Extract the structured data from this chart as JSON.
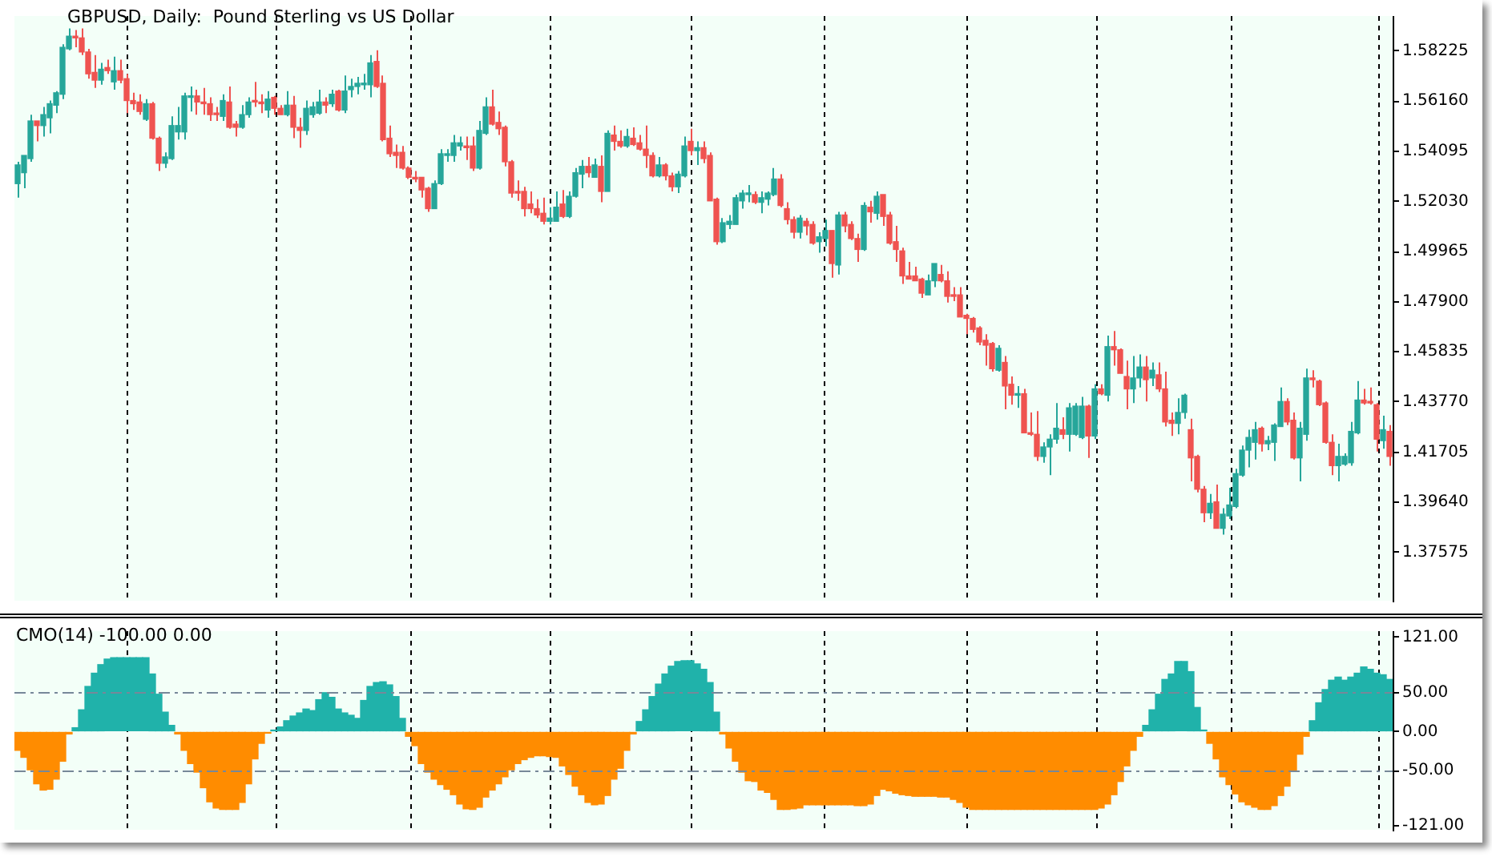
{
  "chart_data": [
    {
      "type": "candlestick",
      "title": "GBPUSD, Daily:  Pound Sterling vs US Dollar",
      "categories": [
        null,
        null,
        null,
        null,
        null,
        null,
        null,
        null,
        null,
        null,
        null,
        null,
        null,
        null,
        null,
        null,
        null,
        null,
        null,
        null,
        null,
        null,
        null,
        null,
        null,
        null,
        null,
        null,
        null,
        null,
        null,
        null,
        null,
        null,
        null,
        null,
        null,
        null,
        null,
        null,
        null,
        null,
        null,
        null,
        null,
        null,
        null,
        null,
        null,
        null,
        null,
        null,
        null,
        null,
        null,
        null,
        null,
        null,
        null,
        null,
        null,
        null,
        null,
        null,
        null,
        null,
        null,
        null,
        null,
        null,
        null,
        null,
        null,
        null,
        null,
        null,
        null,
        null,
        null,
        null,
        null,
        null,
        null,
        null,
        null,
        null,
        null,
        null,
        null,
        null,
        null,
        null,
        null,
        null,
        null,
        null,
        null,
        null,
        null,
        null,
        null,
        null,
        null,
        null,
        null,
        null,
        null,
        null,
        null,
        null,
        null,
        null,
        null,
        null,
        null,
        null,
        null,
        null,
        null,
        null,
        null,
        null,
        null,
        null,
        null,
        null,
        null,
        null,
        null,
        null,
        null,
        null,
        null,
        null,
        null,
        null,
        null,
        null,
        null,
        null,
        null,
        null,
        null,
        null,
        null,
        null,
        null,
        null,
        null,
        null,
        null,
        null,
        null,
        null,
        null,
        null,
        null,
        null,
        null,
        null,
        null,
        null,
        null,
        null,
        null,
        null,
        null,
        null,
        null,
        null,
        null,
        null,
        null,
        null,
        null,
        null,
        null,
        null,
        null,
        null,
        null,
        null,
        null,
        null,
        null,
        null,
        null,
        null,
        null,
        null,
        null,
        null,
        null,
        null,
        null,
        null,
        null,
        null,
        null,
        null,
        null,
        null,
        null,
        null,
        null,
        null,
        null,
        null,
        null,
        null,
        null,
        null,
        null,
        null,
        null
      ],
      "ohlc": [
        [
          1.5276,
          1.5366,
          1.5218,
          1.5353
        ],
        [
          1.5321,
          1.5392,
          1.5257,
          1.5392
        ],
        [
          1.5379,
          1.556,
          1.5366,
          1.5534
        ],
        [
          1.5534,
          1.5534,
          1.545,
          1.5515
        ],
        [
          1.5515,
          1.5592,
          1.547,
          1.556
        ],
        [
          1.5547,
          1.5618,
          1.5483,
          1.5605
        ],
        [
          1.5599,
          1.5657,
          1.5566,
          1.565
        ],
        [
          1.5644,
          1.585,
          1.5624,
          1.5837
        ],
        [
          1.5831,
          1.5915,
          1.5825,
          1.5883
        ],
        [
          1.5883,
          1.5908,
          1.5837,
          1.5876
        ],
        [
          1.5876,
          1.5915,
          1.5805,
          1.5818
        ],
        [
          1.5818,
          1.5831,
          1.5708,
          1.5728
        ],
        [
          1.5734,
          1.5805,
          1.567,
          1.5702
        ],
        [
          1.5702,
          1.5773,
          1.5683,
          1.5747
        ],
        [
          1.5754,
          1.5786,
          1.5728,
          1.5741
        ],
        [
          1.5695,
          1.5799,
          1.5663,
          1.5741
        ],
        [
          1.5741,
          1.5786,
          1.5689,
          1.5702
        ],
        [
          1.5708,
          1.5728,
          1.5566,
          1.5618
        ],
        [
          1.5618,
          1.565,
          1.5579,
          1.5605
        ],
        [
          1.5612,
          1.5644,
          1.556,
          1.5573
        ],
        [
          1.5541,
          1.5624,
          1.5534,
          1.5605
        ],
        [
          1.5605,
          1.5612,
          1.5457,
          1.5463
        ],
        [
          1.5463,
          1.547,
          1.5328,
          1.536
        ],
        [
          1.536,
          1.5405,
          1.534,
          1.5386
        ],
        [
          1.5379,
          1.5553,
          1.5373,
          1.5515
        ],
        [
          1.5489,
          1.5592,
          1.5457,
          1.5515
        ],
        [
          1.5489,
          1.565,
          1.5457,
          1.5637
        ],
        [
          1.5631,
          1.5676,
          1.5573,
          1.5637
        ],
        [
          1.5637,
          1.5663,
          1.556,
          1.5612
        ],
        [
          1.5612,
          1.567,
          1.556,
          1.5605
        ],
        [
          1.5605,
          1.5631,
          1.5534,
          1.556
        ],
        [
          1.5566,
          1.5592,
          1.5534,
          1.556
        ],
        [
          1.5553,
          1.5644,
          1.5534,
          1.5618
        ],
        [
          1.5612,
          1.5676,
          1.5502,
          1.5508
        ],
        [
          1.5521,
          1.5534,
          1.547,
          1.5508
        ],
        [
          1.5508,
          1.5599,
          1.5502,
          1.556
        ],
        [
          1.556,
          1.5631,
          1.5547,
          1.5612
        ],
        [
          1.5618,
          1.5695,
          1.5592,
          1.5612
        ],
        [
          1.5612,
          1.5644,
          1.5566,
          1.5605
        ],
        [
          1.5579,
          1.5657,
          1.5547,
          1.5624
        ],
        [
          1.5631,
          1.5637,
          1.556,
          1.5586
        ],
        [
          1.5586,
          1.5599,
          1.556,
          1.556
        ],
        [
          1.556,
          1.5657,
          1.5553,
          1.5599
        ],
        [
          1.5599,
          1.5637,
          1.5463,
          1.5508
        ],
        [
          1.5508,
          1.5547,
          1.5424,
          1.5495
        ],
        [
          1.5495,
          1.5618,
          1.5476,
          1.5586
        ],
        [
          1.556,
          1.5612,
          1.5547,
          1.5592
        ],
        [
          1.5566,
          1.5663,
          1.556,
          1.5612
        ],
        [
          1.5612,
          1.5631,
          1.5566,
          1.5599
        ],
        [
          1.5605,
          1.5663,
          1.5592,
          1.5644
        ],
        [
          1.5657,
          1.5663,
          1.5573,
          1.5579
        ],
        [
          1.5579,
          1.5721,
          1.5566,
          1.5657
        ],
        [
          1.5663,
          1.5708,
          1.5631,
          1.5676
        ],
        [
          1.5676,
          1.5715,
          1.5644,
          1.5689
        ],
        [
          1.5683,
          1.5728,
          1.5663,
          1.5689
        ],
        [
          1.5683,
          1.5805,
          1.5631,
          1.5773
        ],
        [
          1.5779,
          1.5825,
          1.567,
          1.5676
        ],
        [
          1.5689,
          1.5721,
          1.545,
          1.5457
        ],
        [
          1.5463,
          1.5515,
          1.5386,
          1.5399
        ],
        [
          1.5405,
          1.5437,
          1.534,
          1.5392
        ],
        [
          1.5405,
          1.5431,
          1.5334,
          1.534
        ],
        [
          1.534,
          1.5347,
          1.5295,
          1.5302
        ],
        [
          1.5302,
          1.5328,
          1.5282,
          1.5295
        ],
        [
          1.5302,
          1.5302,
          1.5218,
          1.525
        ],
        [
          1.5257,
          1.5263,
          1.516,
          1.5173
        ],
        [
          1.5173,
          1.5289,
          1.5173,
          1.5276
        ],
        [
          1.5276,
          1.5418,
          1.527,
          1.5399
        ],
        [
          1.5392,
          1.5418,
          1.5366,
          1.5399
        ],
        [
          1.5392,
          1.5476,
          1.5366,
          1.5444
        ],
        [
          1.5431,
          1.547,
          1.5412,
          1.5444
        ],
        [
          1.5431,
          1.547,
          1.5373,
          1.5424
        ],
        [
          1.5431,
          1.547,
          1.5328,
          1.534
        ],
        [
          1.534,
          1.5534,
          1.5334,
          1.5495
        ],
        [
          1.5483,
          1.5631,
          1.5476,
          1.5592
        ],
        [
          1.5592,
          1.5663,
          1.5515,
          1.5521
        ],
        [
          1.5528,
          1.5573,
          1.5476,
          1.5502
        ],
        [
          1.5508,
          1.5515,
          1.5347,
          1.5366
        ],
        [
          1.5366,
          1.5373,
          1.5218,
          1.5237
        ],
        [
          1.5244,
          1.5289,
          1.5205,
          1.5237
        ],
        [
          1.5244,
          1.5263,
          1.5141,
          1.5173
        ],
        [
          1.5192,
          1.5244,
          1.5154,
          1.5173
        ],
        [
          1.5173,
          1.5212,
          1.5134,
          1.5147
        ],
        [
          1.5154,
          1.5218,
          1.5108,
          1.5121
        ],
        [
          1.5121,
          1.5179,
          1.5108,
          1.5134
        ],
        [
          1.5121,
          1.5244,
          1.5121,
          1.5179
        ],
        [
          1.5192,
          1.525,
          1.5134,
          1.5141
        ],
        [
          1.5141,
          1.5244,
          1.5134,
          1.5224
        ],
        [
          1.5224,
          1.534,
          1.5218,
          1.5321
        ],
        [
          1.5315,
          1.5373,
          1.5257,
          1.5347
        ],
        [
          1.5347,
          1.5386,
          1.5302,
          1.5321
        ],
        [
          1.5302,
          1.5379,
          1.5302,
          1.5353
        ],
        [
          1.5347,
          1.5392,
          1.5199,
          1.5244
        ],
        [
          1.5244,
          1.5495,
          1.5244,
          1.5483
        ],
        [
          1.5476,
          1.5515,
          1.5412,
          1.545
        ],
        [
          1.545,
          1.5495,
          1.5424,
          1.5431
        ],
        [
          1.5431,
          1.5502,
          1.5424,
          1.547
        ],
        [
          1.5463,
          1.5508,
          1.5431,
          1.5437
        ],
        [
          1.5444,
          1.5476,
          1.5412,
          1.5418
        ],
        [
          1.5418,
          1.5515,
          1.534,
          1.5392
        ],
        [
          1.5392,
          1.5405,
          1.5302,
          1.5308
        ],
        [
          1.5308,
          1.5386,
          1.5302,
          1.5353
        ],
        [
          1.5353,
          1.536,
          1.5289,
          1.5308
        ],
        [
          1.5308,
          1.5321,
          1.5244,
          1.5263
        ],
        [
          1.5263,
          1.5328,
          1.5237,
          1.5315
        ],
        [
          1.5308,
          1.547,
          1.5302,
          1.5431
        ],
        [
          1.545,
          1.5502,
          1.5392,
          1.5412
        ],
        [
          1.5412,
          1.545,
          1.5353,
          1.5424
        ],
        [
          1.5424,
          1.545,
          1.536,
          1.5379
        ],
        [
          1.5392,
          1.5405,
          1.5205,
          1.5205
        ],
        [
          1.5212,
          1.5218,
          1.5025,
          1.5037
        ],
        [
          1.5037,
          1.5134,
          1.5031,
          1.5115
        ],
        [
          1.5108,
          1.5147,
          1.5089,
          1.5121
        ],
        [
          1.5108,
          1.5231,
          1.5108,
          1.5218
        ],
        [
          1.5205,
          1.525,
          1.5173,
          1.5237
        ],
        [
          1.5231,
          1.527,
          1.5199,
          1.5237
        ],
        [
          1.5231,
          1.5244,
          1.5192,
          1.5199
        ],
        [
          1.5199,
          1.5244,
          1.5154,
          1.5218
        ],
        [
          1.5212,
          1.5244,
          1.5186,
          1.5237
        ],
        [
          1.5231,
          1.534,
          1.5224,
          1.5295
        ],
        [
          1.5295,
          1.5315,
          1.5179,
          1.5186
        ],
        [
          1.5173,
          1.5199,
          1.5108,
          1.5128
        ],
        [
          1.5128,
          1.5141,
          1.505,
          1.5076
        ],
        [
          1.5076,
          1.5147,
          1.505,
          1.5134
        ],
        [
          1.5121,
          1.5134,
          1.5063,
          1.5102
        ],
        [
          1.5108,
          1.5121,
          1.5025,
          1.5031
        ],
        [
          1.5037,
          1.5076,
          1.4992,
          1.5057
        ],
        [
          1.505,
          1.5128,
          1.5018,
          1.5083
        ],
        [
          1.5083,
          1.5083,
          1.4889,
          1.4947
        ],
        [
          1.4941,
          1.516,
          1.4902,
          1.5147
        ],
        [
          1.5147,
          1.516,
          1.5076,
          1.5102
        ],
        [
          1.5108,
          1.5121,
          1.5044,
          1.505
        ],
        [
          1.505,
          1.507,
          1.4954,
          1.5005
        ],
        [
          1.5005,
          1.5199,
          1.4999,
          1.5186
        ],
        [
          1.5179,
          1.5205,
          1.5115,
          1.516
        ],
        [
          1.5154,
          1.5244,
          1.5128,
          1.5224
        ],
        [
          1.5231,
          1.5231,
          1.5102,
          1.5141
        ],
        [
          1.5147,
          1.516,
          1.5025,
          1.5031
        ],
        [
          1.5037,
          1.5102,
          1.4954,
          1.5005
        ],
        [
          1.4999,
          1.5012,
          1.4863,
          1.4896
        ],
        [
          1.4896,
          1.4954,
          1.4883,
          1.4883
        ],
        [
          1.4896,
          1.4934,
          1.4876,
          1.4876
        ],
        [
          1.4883,
          1.4889,
          1.4805,
          1.4825
        ],
        [
          1.4818,
          1.4902,
          1.4818,
          1.4876
        ],
        [
          1.4876,
          1.4947,
          1.485,
          1.4947
        ],
        [
          1.4902,
          1.4941,
          1.487,
          1.4876
        ],
        [
          1.4876,
          1.4915,
          1.4786,
          1.4812
        ],
        [
          1.4818,
          1.485,
          1.4792,
          1.4812
        ],
        [
          1.4818,
          1.485,
          1.4727,
          1.4727
        ],
        [
          1.4734,
          1.474,
          1.4656,
          1.4721
        ],
        [
          1.4721,
          1.4727,
          1.4663,
          1.4676
        ],
        [
          1.4682,
          1.4689,
          1.4611,
          1.4624
        ],
        [
          1.4631,
          1.4656,
          1.4527,
          1.4611
        ],
        [
          1.4618,
          1.4624,
          1.4502,
          1.4514
        ],
        [
          1.4508,
          1.4611,
          1.4502,
          1.4598
        ],
        [
          1.454,
          1.4566,
          1.4347,
          1.4443
        ],
        [
          1.445,
          1.4482,
          1.4366,
          1.4405
        ],
        [
          1.4405,
          1.4443,
          1.4353,
          1.4411
        ],
        [
          1.4411,
          1.4431,
          1.425,
          1.425
        ],
        [
          1.425,
          1.4334,
          1.4237,
          1.4244
        ],
        [
          1.4244,
          1.434,
          1.4134,
          1.4153
        ],
        [
          1.4153,
          1.4211,
          1.4127,
          1.4192
        ],
        [
          1.4192,
          1.4244,
          1.4076,
          1.4224
        ],
        [
          1.4224,
          1.4373,
          1.4205,
          1.4269
        ],
        [
          1.4263,
          1.4314,
          1.4224,
          1.4244
        ],
        [
          1.4244,
          1.4373,
          1.4173,
          1.4353
        ],
        [
          1.4244,
          1.4373,
          1.4237,
          1.436
        ],
        [
          1.4231,
          1.4398,
          1.4224,
          1.436
        ],
        [
          1.436,
          1.4366,
          1.4147,
          1.4237
        ],
        [
          1.4237,
          1.445,
          1.4224,
          1.4431
        ],
        [
          1.4431,
          1.445,
          1.4405,
          1.4411
        ],
        [
          1.4405,
          1.465,
          1.4379,
          1.4605
        ],
        [
          1.4605,
          1.4669,
          1.4527,
          1.4592
        ],
        [
          1.4592,
          1.4598,
          1.4495,
          1.4495
        ],
        [
          1.4482,
          1.4547,
          1.4347,
          1.4431
        ],
        [
          1.4431,
          1.4566,
          1.4373,
          1.4476
        ],
        [
          1.4476,
          1.4573,
          1.4437,
          1.4521
        ],
        [
          1.4521,
          1.4566,
          1.4379,
          1.4469
        ],
        [
          1.4476,
          1.454,
          1.4443,
          1.4508
        ],
        [
          1.4489,
          1.454,
          1.4418,
          1.4431
        ],
        [
          1.4431,
          1.4502,
          1.4276,
          1.4295
        ],
        [
          1.4302,
          1.4334,
          1.4237,
          1.4289
        ],
        [
          1.4289,
          1.4392,
          1.4244,
          1.4334
        ],
        [
          1.4334,
          1.4411,
          1.4308,
          1.4405
        ],
        [
          1.4263,
          1.4308,
          1.405,
          1.4147
        ],
        [
          1.4153,
          1.416,
          1.4005,
          1.4018
        ],
        [
          1.4018,
          1.4031,
          1.3882,
          1.3921
        ],
        [
          1.3921,
          1.3998,
          1.3895,
          1.396
        ],
        [
          1.3966,
          1.4037,
          1.3857,
          1.3857
        ],
        [
          1.3857,
          1.394,
          1.3831,
          1.3915
        ],
        [
          1.3908,
          1.4024,
          1.3895,
          1.3953
        ],
        [
          1.3947,
          1.4102,
          1.394,
          1.4082
        ],
        [
          1.4076,
          1.4198,
          1.4069,
          1.4179
        ],
        [
          1.4179,
          1.4263,
          1.4108,
          1.4231
        ],
        [
          1.4211,
          1.4295,
          1.414,
          1.4263
        ],
        [
          1.4269,
          1.4276,
          1.4173,
          1.4205
        ],
        [
          1.4205,
          1.4237,
          1.4179,
          1.4218
        ],
        [
          1.4211,
          1.4289,
          1.4134,
          1.4282
        ],
        [
          1.4276,
          1.4437,
          1.4276,
          1.4379
        ],
        [
          1.4379,
          1.4392,
          1.4282,
          1.4295
        ],
        [
          1.4302,
          1.4334,
          1.414,
          1.4147
        ],
        [
          1.4147,
          1.4295,
          1.405,
          1.4269
        ],
        [
          1.4244,
          1.4514,
          1.4218,
          1.4476
        ],
        [
          1.4476,
          1.4508,
          1.4437,
          1.4469
        ],
        [
          1.4463,
          1.4469,
          1.436,
          1.4366
        ],
        [
          1.4373,
          1.4379,
          1.4205,
          1.4211
        ],
        [
          1.4211,
          1.4244,
          1.4076,
          1.4115
        ],
        [
          1.4115,
          1.4205,
          1.405,
          1.4153
        ],
        [
          1.4121,
          1.4166,
          1.4115,
          1.4153
        ],
        [
          1.4127,
          1.4295,
          1.4115,
          1.4256
        ],
        [
          1.425,
          1.4463,
          1.4244,
          1.4385
        ],
        [
          1.4385,
          1.4431,
          1.4366,
          1.4373
        ],
        [
          1.4379,
          1.4437,
          1.4366,
          1.4373
        ],
        [
          1.4366,
          1.4373,
          1.4173,
          1.4224
        ],
        [
          1.4218,
          1.4321,
          1.4185,
          1.4263
        ],
        [
          1.4256,
          1.4282,
          1.4115,
          1.4153
        ]
      ],
      "colors": [
        "#26a69a",
        "#26a69a",
        "#26a69a",
        "#ef5350",
        "#26a69a",
        "#26a69a",
        "#26a69a",
        "#26a69a",
        "#26a69a",
        "#ef5350",
        "#ef5350",
        "#ef5350",
        "#ef5350",
        "#26a69a",
        "#ef5350",
        "#26a69a",
        "#ef5350",
        "#ef5350",
        "#ef5350",
        "#ef5350",
        "#26a69a",
        "#ef5350",
        "#ef5350",
        "#26a69a",
        "#26a69a",
        "#26a69a",
        "#26a69a",
        "#26a69a",
        "#ef5350",
        "#ef5350",
        "#ef5350",
        "#ef5350",
        "#26a69a",
        "#ef5350",
        "#ef5350",
        "#26a69a",
        "#26a69a",
        "#ef5350",
        "#ef5350",
        "#26a69a",
        "#ef5350",
        "#ef5350",
        "#26a69a",
        "#ef5350",
        "#ef5350",
        "#26a69a",
        "#26a69a",
        "#26a69a",
        "#ef5350",
        "#26a69a",
        "#ef5350",
        "#26a69a",
        "#26a69a",
        "#26a69a",
        "#26a69a",
        "#26a69a",
        "#ef5350",
        "#ef5350",
        "#ef5350",
        "#ef5350",
        "#ef5350",
        "#ef5350",
        "#ef5350",
        "#ef5350",
        "#ef5350",
        "#26a69a",
        "#26a69a",
        "#26a69a",
        "#26a69a",
        "#26a69a",
        "#ef5350",
        "#ef5350",
        "#26a69a",
        "#26a69a",
        "#ef5350",
        "#ef5350",
        "#ef5350",
        "#ef5350",
        "#ef5350",
        "#ef5350",
        "#ef5350",
        "#ef5350",
        "#ef5350",
        "#26a69a",
        "#26a69a",
        "#ef5350",
        "#26a69a",
        "#26a69a",
        "#26a69a",
        "#ef5350",
        "#26a69a",
        "#ef5350",
        "#26a69a",
        "#ef5350",
        "#ef5350",
        "#26a69a",
        "#ef5350",
        "#ef5350",
        "#ef5350",
        "#ef5350",
        "#26a69a",
        "#ef5350",
        "#ef5350",
        "#26a69a",
        "#26a69a",
        "#ef5350",
        "#26a69a",
        "#ef5350",
        "#ef5350",
        "#ef5350",
        "#26a69a",
        "#26a69a",
        "#26a69a",
        "#26a69a",
        "#26a69a",
        "#ef5350",
        "#26a69a",
        "#26a69a",
        "#26a69a",
        "#ef5350",
        "#ef5350",
        "#ef5350",
        "#26a69a",
        "#ef5350",
        "#ef5350",
        "#26a69a",
        "#26a69a",
        "#ef5350",
        "#26a69a",
        "#ef5350",
        "#ef5350",
        "#ef5350",
        "#26a69a",
        "#ef5350",
        "#26a69a",
        "#ef5350",
        "#ef5350",
        "#ef5350",
        "#ef5350",
        "#ef5350",
        "#ef5350",
        "#ef5350",
        "#26a69a",
        "#26a69a",
        "#ef5350",
        "#ef5350",
        "#ef5350",
        "#ef5350",
        "#ef5350",
        "#ef5350",
        "#ef5350",
        "#ef5350",
        "#ef5350",
        "#26a69a",
        "#ef5350",
        "#ef5350",
        "#26a69a",
        "#ef5350",
        "#ef5350",
        "#ef5350",
        "#26a69a",
        "#26a69a",
        "#26a69a",
        "#ef5350",
        "#26a69a",
        "#26a69a",
        "#26a69a",
        "#ef5350",
        "#26a69a",
        "#ef5350",
        "#26a69a",
        "#ef5350",
        "#ef5350",
        "#ef5350",
        "#26a69a",
        "#26a69a",
        "#ef5350",
        "#26a69a",
        "#ef5350",
        "#ef5350",
        "#ef5350",
        "#26a69a",
        "#26a69a",
        "#ef5350",
        "#ef5350",
        "#ef5350",
        "#26a69a",
        "#ef5350",
        "#26a69a",
        "#26a69a",
        "#26a69a",
        "#26a69a",
        "#26a69a",
        "#26a69a",
        "#ef5350",
        "#26a69a",
        "#26a69a",
        "#26a69a",
        "#ef5350",
        "#ef5350",
        "#26a69a",
        "#26a69a",
        "#ef5350",
        "#ef5350",
        "#ef5350",
        "#ef5350",
        "#26a69a",
        "#26a69a",
        "#26a69a",
        "#26a69a",
        "#ef5350",
        "#ef5350",
        "#ef5350",
        "#26a69a",
        "#ef5350"
      ],
      "ylim": [
        1.3559,
        1.5966
      ],
      "yticks": [
        1.58225,
        {
          "value": 1.5616,
          "label": "1.56160"
        },
        1.54095,
        {
          "value": 1.5203,
          "label": "1.52030"
        },
        1.49965,
        {
          "value": 1.479,
          "label": "1.47900"
        },
        1.45835,
        {
          "value": 1.4377,
          "label": "1.43770"
        },
        1.41705,
        {
          "value": 1.3964,
          "label": "1.39640"
        },
        1.37575
      ]
    },
    {
      "type": "bar",
      "title": "CMO(14) -100.00 0.00",
      "categories": [
        null,
        null,
        null,
        null,
        null,
        null,
        null,
        null,
        null,
        null,
        null,
        null,
        null,
        null,
        null,
        null,
        null,
        null,
        null,
        null,
        null,
        null,
        null,
        null,
        null,
        null,
        null,
        null,
        null,
        null,
        null,
        null,
        null,
        null,
        null,
        null,
        null,
        null,
        null,
        null,
        null,
        null,
        null,
        null,
        null,
        null,
        null,
        null,
        null,
        null,
        null,
        null,
        null,
        null,
        null,
        null,
        null,
        null,
        null,
        null,
        null,
        null,
        null,
        null,
        null,
        null,
        null,
        null,
        null,
        null,
        null,
        null,
        null,
        null,
        null,
        null,
        null,
        null,
        null,
        null,
        null,
        null,
        null,
        null,
        null,
        null,
        null,
        null,
        null,
        null,
        null,
        null,
        null,
        null,
        null,
        null,
        null,
        null,
        null,
        null,
        null,
        null,
        null,
        null,
        null,
        null,
        null,
        null,
        null,
        null,
        null,
        null,
        null,
        null,
        null,
        null,
        null,
        null,
        null,
        null,
        null,
        null,
        null,
        null,
        null,
        null,
        null,
        null,
        null,
        null,
        null,
        null,
        null,
        null,
        null,
        null,
        null,
        null,
        null,
        null,
        null,
        null,
        null,
        null,
        null,
        null,
        null,
        null,
        null,
        null,
        null,
        null,
        null,
        null,
        null,
        null,
        null,
        null,
        null,
        null,
        null,
        null,
        null,
        null,
        null,
        null,
        null,
        null,
        null,
        null,
        null,
        null,
        null,
        null,
        null,
        null,
        null,
        null,
        null,
        null,
        null,
        null,
        null,
        null,
        null,
        null,
        null,
        null,
        null,
        null,
        null,
        null,
        null,
        null,
        null,
        null,
        null,
        null,
        null,
        null,
        null,
        null,
        null,
        null,
        null,
        null,
        null,
        null,
        null,
        null,
        null,
        null,
        null,
        null,
        null
      ],
      "values": [
        -24,
        -33,
        -49,
        -67,
        -75,
        -74,
        -61,
        -38,
        -3,
        5,
        28,
        58,
        75,
        86,
        93,
        95,
        95,
        95,
        95,
        95,
        95,
        74,
        48,
        25,
        8,
        -3,
        -24,
        -41,
        -52,
        -72,
        -90,
        -98,
        -100,
        -100,
        -100,
        -91,
        -67,
        -35,
        -15,
        -2,
        2,
        6,
        14,
        20,
        24,
        29,
        27,
        41,
        50,
        44,
        29,
        24,
        21,
        17,
        40,
        58,
        63,
        64,
        60,
        45,
        17,
        -6,
        -18,
        -41,
        -52,
        -61,
        -68,
        -74,
        -81,
        -93,
        -99,
        -100,
        -97,
        -84,
        -75,
        -67,
        -58,
        -49,
        -41,
        -36,
        -33,
        -31,
        -31,
        -32,
        -33,
        -44,
        -55,
        -70,
        -81,
        -91,
        -94,
        -93,
        -82,
        -61,
        -47,
        -24,
        -3,
        13,
        28,
        45,
        61,
        74,
        84,
        90,
        91,
        91,
        87,
        80,
        63,
        25,
        -3,
        -21,
        -38,
        -52,
        -63,
        -64,
        -75,
        -78,
        -87,
        -100,
        -100,
        -99,
        -98,
        -94,
        -94,
        -94,
        -94,
        -94,
        -94,
        -94,
        -94,
        -95,
        -95,
        -93,
        -82,
        -74,
        -76,
        -79,
        -81,
        -82,
        -83,
        -83,
        -83,
        -83,
        -84,
        -84,
        -87,
        -91,
        -97,
        -100,
        -100,
        -100,
        -100,
        -100,
        -100,
        -100,
        -100,
        -100,
        -100,
        -100,
        -100,
        -100,
        -100,
        -100,
        -100,
        -100,
        -100,
        -100,
        -100,
        -98,
        -93,
        -81,
        -64,
        -44,
        -24,
        -6,
        8,
        28,
        48,
        67,
        74,
        90,
        90,
        77,
        31,
        2,
        -15,
        -35,
        -58,
        -68,
        -80,
        -90,
        -94,
        -97,
        -100,
        -100,
        -95,
        -82,
        -70,
        -51,
        -29,
        -6,
        14,
        37,
        54,
        66,
        70,
        66,
        70,
        75,
        83,
        80,
        75,
        73,
        67
      ],
      "colors": [
        "#ff8c00",
        "#ff8c00",
        "#ff8c00",
        "#ff8c00",
        "#ff8c00",
        "#ff8c00",
        "#ff8c00",
        "#ff8c00",
        "#ff8c00",
        "#20b2aa",
        "#20b2aa",
        "#20b2aa",
        "#20b2aa",
        "#20b2aa",
        "#20b2aa",
        "#20b2aa",
        "#20b2aa",
        "#20b2aa",
        "#20b2aa",
        "#20b2aa",
        "#20b2aa",
        "#20b2aa",
        "#20b2aa",
        "#20b2aa",
        "#20b2aa",
        "#ff8c00",
        "#ff8c00",
        "#ff8c00",
        "#ff8c00",
        "#ff8c00",
        "#ff8c00",
        "#ff8c00",
        "#ff8c00",
        "#ff8c00",
        "#ff8c00",
        "#ff8c00",
        "#ff8c00",
        "#ff8c00",
        "#ff8c00",
        "#ff8c00",
        "#20b2aa",
        "#20b2aa",
        "#20b2aa",
        "#20b2aa",
        "#20b2aa",
        "#20b2aa",
        "#20b2aa",
        "#20b2aa",
        "#20b2aa",
        "#20b2aa",
        "#20b2aa",
        "#20b2aa",
        "#20b2aa",
        "#20b2aa",
        "#20b2aa",
        "#20b2aa",
        "#20b2aa",
        "#20b2aa",
        "#20b2aa",
        "#20b2aa",
        "#20b2aa",
        "#ff8c00",
        "#ff8c00",
        "#ff8c00",
        "#ff8c00",
        "#ff8c00",
        "#ff8c00",
        "#ff8c00",
        "#ff8c00",
        "#ff8c00",
        "#ff8c00",
        "#ff8c00",
        "#ff8c00",
        "#ff8c00",
        "#ff8c00",
        "#ff8c00",
        "#ff8c00",
        "#ff8c00",
        "#ff8c00",
        "#ff8c00",
        "#ff8c00",
        "#ff8c00",
        "#ff8c00",
        "#ff8c00",
        "#ff8c00",
        "#ff8c00",
        "#ff8c00",
        "#ff8c00",
        "#ff8c00",
        "#ff8c00",
        "#ff8c00",
        "#ff8c00",
        "#ff8c00",
        "#ff8c00",
        "#ff8c00",
        "#ff8c00",
        "#ff8c00",
        "#20b2aa",
        "#20b2aa",
        "#20b2aa",
        "#20b2aa",
        "#20b2aa",
        "#20b2aa",
        "#20b2aa",
        "#20b2aa",
        "#20b2aa",
        "#20b2aa",
        "#20b2aa",
        "#20b2aa",
        "#20b2aa",
        "#ff8c00",
        "#ff8c00",
        "#ff8c00",
        "#ff8c00",
        "#ff8c00",
        "#ff8c00",
        "#ff8c00",
        "#ff8c00",
        "#ff8c00",
        "#ff8c00",
        "#ff8c00",
        "#ff8c00",
        "#ff8c00",
        "#ff8c00",
        "#ff8c00",
        "#ff8c00",
        "#ff8c00",
        "#ff8c00",
        "#ff8c00",
        "#ff8c00",
        "#ff8c00",
        "#ff8c00",
        "#ff8c00",
        "#ff8c00",
        "#ff8c00",
        "#ff8c00",
        "#ff8c00",
        "#ff8c00",
        "#ff8c00",
        "#ff8c00",
        "#ff8c00",
        "#ff8c00",
        "#ff8c00",
        "#ff8c00",
        "#ff8c00",
        "#ff8c00",
        "#ff8c00",
        "#ff8c00",
        "#ff8c00",
        "#ff8c00",
        "#ff8c00",
        "#ff8c00",
        "#ff8c00",
        "#ff8c00",
        "#ff8c00",
        "#ff8c00",
        "#ff8c00",
        "#ff8c00",
        "#ff8c00",
        "#ff8c00",
        "#ff8c00",
        "#ff8c00",
        "#ff8c00",
        "#ff8c00",
        "#ff8c00",
        "#ff8c00",
        "#ff8c00",
        "#ff8c00",
        "#ff8c00",
        "#ff8c00",
        "#ff8c00",
        "#ff8c00",
        "#ff8c00",
        "#ff8c00",
        "#ff8c00",
        "#ff8c00",
        "#20b2aa",
        "#20b2aa",
        "#20b2aa",
        "#20b2aa",
        "#20b2aa",
        "#20b2aa",
        "#20b2aa",
        "#20b2aa",
        "#20b2aa",
        "#20b2aa",
        "#ff8c00",
        "#ff8c00",
        "#ff8c00",
        "#ff8c00",
        "#ff8c00",
        "#ff8c00",
        "#ff8c00",
        "#ff8c00",
        "#ff8c00",
        "#ff8c00",
        "#ff8c00",
        "#ff8c00",
        "#ff8c00",
        "#ff8c00",
        "#ff8c00",
        "#ff8c00",
        "#20b2aa",
        "#20b2aa",
        "#20b2aa",
        "#20b2aa",
        "#20b2aa",
        "#20b2aa",
        "#20b2aa",
        "#20b2aa",
        "#20b2aa",
        "#20b2aa",
        "#20b2aa",
        "#20b2aa",
        "#20b2aa"
      ],
      "ylim": [
        -126,
        129
      ],
      "yticks": [
        {
          "value": 121,
          "label": "121.00"
        },
        {
          "value": 50,
          "label": "50.00"
        },
        {
          "value": 0,
          "label": "0.00"
        },
        {
          "value": -50,
          "label": "-50.00"
        },
        {
          "value": -121,
          "label": "-121.00"
        }
      ],
      "ref_lines": [
        {
          "axis": "y",
          "value": 50,
          "color": "#778899",
          "line_style": "dashed"
        },
        {
          "axis": "y",
          "value": -50,
          "color": "#778899",
          "line_style": "dashed"
        }
      ]
    }
  ]
}
